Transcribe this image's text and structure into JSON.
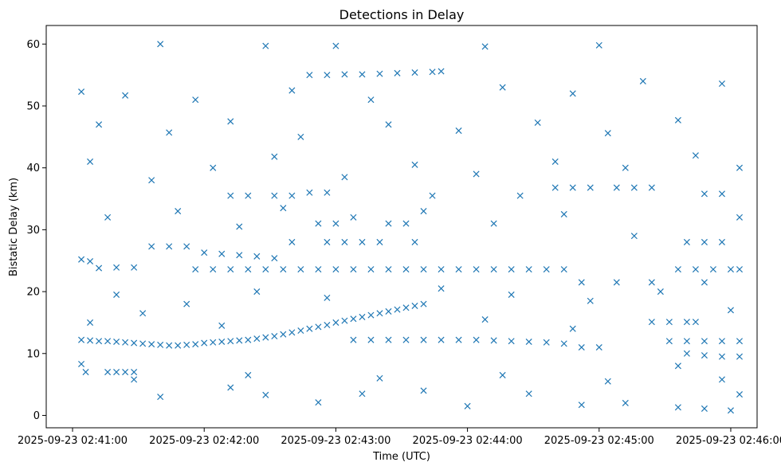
{
  "chart_data": {
    "type": "scatter",
    "title": "Detections in Delay",
    "xlabel": "Time (UTC)",
    "ylabel": "Bistatic Delay (km)",
    "marker": "x",
    "color": "#1f77b4",
    "grid": false,
    "x_ticks": [
      {
        "time": "2025-09-23 02:41:00",
        "label": "2025-09-23 02:41:00"
      },
      {
        "time": "2025-09-23 02:42:00",
        "label": "2025-09-23 02:42:00"
      },
      {
        "time": "2025-09-23 02:43:00",
        "label": "2025-09-23 02:43:00"
      },
      {
        "time": "2025-09-23 02:44:00",
        "label": "2025-09-23 02:44:00"
      },
      {
        "time": "2025-09-23 02:45:00",
        "label": "2025-09-23 02:45:00"
      },
      {
        "time": "2025-09-23 02:46:00",
        "label": "2025-09-23 02:46:00"
      }
    ],
    "y_ticks": [
      0,
      10,
      20,
      30,
      40,
      50,
      60
    ],
    "xlim": [
      "2025-09-23 02:40:48",
      "2025-09-23 02:46:12"
    ],
    "ylim": [
      -2,
      63
    ],
    "series": [
      {
        "values": [
          [
            "2025-09-23 02:41:04",
            12.2
          ],
          [
            "2025-09-23 02:41:08",
            12.1
          ],
          [
            "2025-09-23 02:41:12",
            12.0
          ],
          [
            "2025-09-23 02:41:16",
            12.0
          ],
          [
            "2025-09-23 02:41:20",
            11.9
          ],
          [
            "2025-09-23 02:41:24",
            11.8
          ],
          [
            "2025-09-23 02:41:28",
            11.7
          ],
          [
            "2025-09-23 02:41:32",
            11.6
          ],
          [
            "2025-09-23 02:41:36",
            11.5
          ],
          [
            "2025-09-23 02:41:40",
            11.4
          ],
          [
            "2025-09-23 02:41:44",
            11.3
          ],
          [
            "2025-09-23 02:41:48",
            11.3
          ],
          [
            "2025-09-23 02:41:52",
            11.4
          ],
          [
            "2025-09-23 02:41:56",
            11.5
          ],
          [
            "2025-09-23 02:42:00",
            11.7
          ],
          [
            "2025-09-23 02:42:04",
            11.8
          ],
          [
            "2025-09-23 02:42:08",
            11.9
          ],
          [
            "2025-09-23 02:42:12",
            12.0
          ],
          [
            "2025-09-23 02:42:16",
            12.1
          ],
          [
            "2025-09-23 02:42:20",
            12.2
          ],
          [
            "2025-09-23 02:42:24",
            12.4
          ],
          [
            "2025-09-23 02:42:28",
            12.6
          ],
          [
            "2025-09-23 02:42:32",
            12.8
          ],
          [
            "2025-09-23 02:42:36",
            13.1
          ],
          [
            "2025-09-23 02:42:40",
            13.4
          ],
          [
            "2025-09-23 02:42:44",
            13.7
          ],
          [
            "2025-09-23 02:42:48",
            14.0
          ],
          [
            "2025-09-23 02:42:52",
            14.3
          ],
          [
            "2025-09-23 02:42:56",
            14.6
          ],
          [
            "2025-09-23 02:43:00",
            15.0
          ],
          [
            "2025-09-23 02:43:04",
            15.3
          ],
          [
            "2025-09-23 02:43:08",
            15.6
          ],
          [
            "2025-09-23 02:43:12",
            15.9
          ],
          [
            "2025-09-23 02:43:16",
            16.2
          ],
          [
            "2025-09-23 02:43:20",
            16.5
          ],
          [
            "2025-09-23 02:43:24",
            16.8
          ],
          [
            "2025-09-23 02:43:28",
            17.1
          ],
          [
            "2025-09-23 02:43:32",
            17.4
          ],
          [
            "2025-09-23 02:43:36",
            17.7
          ],
          [
            "2025-09-23 02:43:40",
            18.0
          ],
          [
            "2025-09-23 02:43:08",
            12.2
          ],
          [
            "2025-09-23 02:43:16",
            12.2
          ],
          [
            "2025-09-23 02:43:24",
            12.2
          ],
          [
            "2025-09-23 02:43:32",
            12.2
          ],
          [
            "2025-09-23 02:43:40",
            12.2
          ],
          [
            "2025-09-23 02:43:48",
            12.2
          ],
          [
            "2025-09-23 02:43:56",
            12.2
          ],
          [
            "2025-09-23 02:44:04",
            12.2
          ],
          [
            "2025-09-23 02:44:12",
            12.1
          ],
          [
            "2025-09-23 02:44:20",
            12.0
          ],
          [
            "2025-09-23 02:44:28",
            11.9
          ],
          [
            "2025-09-23 02:44:36",
            11.8
          ],
          [
            "2025-09-23 02:44:44",
            11.6
          ],
          [
            "2025-09-23 02:41:04",
            8.3
          ],
          [
            "2025-09-23 02:41:06",
            7.0
          ],
          [
            "2025-09-23 02:41:16",
            7.0
          ],
          [
            "2025-09-23 02:41:20",
            7.0
          ],
          [
            "2025-09-23 02:41:24",
            7.0
          ],
          [
            "2025-09-23 02:41:28",
            7.0
          ],
          [
            "2025-09-23 02:41:04",
            25.2
          ],
          [
            "2025-09-23 02:41:08",
            24.9
          ],
          [
            "2025-09-23 02:41:12",
            23.8
          ],
          [
            "2025-09-23 02:41:20",
            23.9
          ],
          [
            "2025-09-23 02:41:28",
            23.9
          ],
          [
            "2025-09-23 02:41:36",
            27.3
          ],
          [
            "2025-09-23 02:41:44",
            27.3
          ],
          [
            "2025-09-23 02:41:52",
            27.3
          ],
          [
            "2025-09-23 02:42:00",
            26.3
          ],
          [
            "2025-09-23 02:42:08",
            26.1
          ],
          [
            "2025-09-23 02:42:16",
            25.9
          ],
          [
            "2025-09-23 02:42:24",
            25.7
          ],
          [
            "2025-09-23 02:42:32",
            25.4
          ],
          [
            "2025-09-23 02:41:56",
            23.6
          ],
          [
            "2025-09-23 02:42:04",
            23.6
          ],
          [
            "2025-09-23 02:42:12",
            23.6
          ],
          [
            "2025-09-23 02:42:20",
            23.6
          ],
          [
            "2025-09-23 02:42:28",
            23.6
          ],
          [
            "2025-09-23 02:42:36",
            23.6
          ],
          [
            "2025-09-23 02:42:44",
            23.6
          ],
          [
            "2025-09-23 02:42:52",
            23.6
          ],
          [
            "2025-09-23 02:43:00",
            23.6
          ],
          [
            "2025-09-23 02:43:08",
            23.6
          ],
          [
            "2025-09-23 02:43:16",
            23.6
          ],
          [
            "2025-09-23 02:43:24",
            23.6
          ],
          [
            "2025-09-23 02:43:32",
            23.6
          ],
          [
            "2025-09-23 02:43:40",
            23.6
          ],
          [
            "2025-09-23 02:43:48",
            23.6
          ],
          [
            "2025-09-23 02:43:56",
            23.6
          ],
          [
            "2025-09-23 02:44:04",
            23.6
          ],
          [
            "2025-09-23 02:44:12",
            23.6
          ],
          [
            "2025-09-23 02:44:20",
            23.6
          ],
          [
            "2025-09-23 02:44:28",
            23.6
          ],
          [
            "2025-09-23 02:44:36",
            23.6
          ],
          [
            "2025-09-23 02:44:44",
            23.6
          ],
          [
            "2025-09-23 02:45:36",
            23.6
          ],
          [
            "2025-09-23 02:45:44",
            23.6
          ],
          [
            "2025-09-23 02:45:52",
            23.6
          ],
          [
            "2025-09-23 02:46:00",
            23.6
          ],
          [
            "2025-09-23 02:46:04",
            23.6
          ],
          [
            "2025-09-23 02:42:40",
            28.0
          ],
          [
            "2025-09-23 02:42:56",
            28.0
          ],
          [
            "2025-09-23 02:43:04",
            28.0
          ],
          [
            "2025-09-23 02:43:12",
            28.0
          ],
          [
            "2025-09-23 02:43:20",
            28.0
          ],
          [
            "2025-09-23 02:43:36",
            28.0
          ],
          [
            "2025-09-23 02:45:40",
            28.0
          ],
          [
            "2025-09-23 02:45:48",
            28.0
          ],
          [
            "2025-09-23 02:45:56",
            28.0
          ],
          [
            "2025-09-23 02:42:52",
            31.0
          ],
          [
            "2025-09-23 02:43:00",
            31.0
          ],
          [
            "2025-09-23 02:43:24",
            31.0
          ],
          [
            "2025-09-23 02:43:32",
            31.0
          ],
          [
            "2025-09-23 02:42:12",
            35.5
          ],
          [
            "2025-09-23 02:42:20",
            35.5
          ],
          [
            "2025-09-23 02:42:32",
            35.5
          ],
          [
            "2025-09-23 02:42:40",
            35.5
          ],
          [
            "2025-09-23 02:42:48",
            36.0
          ],
          [
            "2025-09-23 02:42:56",
            36.0
          ],
          [
            "2025-09-23 02:43:44",
            35.5
          ],
          [
            "2025-09-23 02:44:24",
            35.5
          ],
          [
            "2025-09-23 02:44:40",
            36.8
          ],
          [
            "2025-09-23 02:44:48",
            36.8
          ],
          [
            "2025-09-23 02:44:56",
            36.8
          ],
          [
            "2025-09-23 02:45:08",
            36.8
          ],
          [
            "2025-09-23 02:45:16",
            36.8
          ],
          [
            "2025-09-23 02:45:24",
            36.8
          ],
          [
            "2025-09-23 02:45:48",
            35.8
          ],
          [
            "2025-09-23 02:45:56",
            35.8
          ],
          [
            "2025-09-23 02:42:48",
            55.0
          ],
          [
            "2025-09-23 02:42:56",
            55.0
          ],
          [
            "2025-09-23 02:43:04",
            55.1
          ],
          [
            "2025-09-23 02:43:12",
            55.1
          ],
          [
            "2025-09-23 02:43:20",
            55.2
          ],
          [
            "2025-09-23 02:43:28",
            55.3
          ],
          [
            "2025-09-23 02:43:36",
            55.4
          ],
          [
            "2025-09-23 02:43:44",
            55.5
          ],
          [
            "2025-09-23 02:43:48",
            55.6
          ],
          [
            "2025-09-23 02:45:24",
            15.1
          ],
          [
            "2025-09-23 02:45:32",
            15.1
          ],
          [
            "2025-09-23 02:45:40",
            15.1
          ],
          [
            "2025-09-23 02:45:44",
            15.1
          ],
          [
            "2025-09-23 02:45:32",
            12.0
          ],
          [
            "2025-09-23 02:45:40",
            12.0
          ],
          [
            "2025-09-23 02:45:48",
            12.0
          ],
          [
            "2025-09-23 02:45:56",
            12.0
          ],
          [
            "2025-09-23 02:46:04",
            12.0
          ],
          [
            "2025-09-23 02:45:40",
            10.0
          ],
          [
            "2025-09-23 02:45:48",
            9.7
          ],
          [
            "2025-09-23 02:45:56",
            9.5
          ],
          [
            "2025-09-23 02:46:04",
            9.5
          ],
          [
            "2025-09-23 02:44:52",
            11.0
          ],
          [
            "2025-09-23 02:45:00",
            11.0
          ],
          [
            "2025-09-23 02:45:36",
            8.0
          ],
          [
            "2025-09-23 02:44:52",
            21.5
          ],
          [
            "2025-09-23 02:45:08",
            21.5
          ],
          [
            "2025-09-23 02:45:24",
            21.5
          ],
          [
            "2025-09-23 02:45:48",
            21.5
          ],
          [
            "2025-09-23 02:41:40",
            60.0
          ],
          [
            "2025-09-23 02:44:08",
            59.6
          ],
          [
            "2025-09-23 02:45:00",
            59.8
          ],
          [
            "2025-09-23 02:43:00",
            59.7
          ],
          [
            "2025-09-23 02:42:28",
            59.7
          ],
          [
            "2025-09-23 02:41:04",
            52.3
          ],
          [
            "2025-09-23 02:41:24",
            51.7
          ],
          [
            "2025-09-23 02:41:56",
            51.0
          ],
          [
            "2025-09-23 02:42:40",
            52.5
          ],
          [
            "2025-09-23 02:43:16",
            51.0
          ],
          [
            "2025-09-23 02:44:16",
            53.0
          ],
          [
            "2025-09-23 02:44:48",
            52.0
          ],
          [
            "2025-09-23 02:45:20",
            54.0
          ],
          [
            "2025-09-23 02:45:56",
            53.6
          ],
          [
            "2025-09-23 02:41:12",
            47.0
          ],
          [
            "2025-09-23 02:41:44",
            45.7
          ],
          [
            "2025-09-23 02:42:12",
            47.5
          ],
          [
            "2025-09-23 02:42:44",
            45.0
          ],
          [
            "2025-09-23 02:43:24",
            47.0
          ],
          [
            "2025-09-23 02:43:56",
            46.0
          ],
          [
            "2025-09-23 02:44:32",
            47.3
          ],
          [
            "2025-09-23 02:45:04",
            45.6
          ],
          [
            "2025-09-23 02:45:36",
            47.7
          ],
          [
            "2025-09-23 02:46:04",
            40.0
          ],
          [
            "2025-09-23 02:41:08",
            41.0
          ],
          [
            "2025-09-23 02:41:36",
            38.0
          ],
          [
            "2025-09-23 02:42:04",
            40.0
          ],
          [
            "2025-09-23 02:42:32",
            41.8
          ],
          [
            "2025-09-23 02:43:04",
            38.5
          ],
          [
            "2025-09-23 02:43:36",
            40.5
          ],
          [
            "2025-09-23 02:44:04",
            39.0
          ],
          [
            "2025-09-23 02:44:40",
            41.0
          ],
          [
            "2025-09-23 02:45:12",
            40.0
          ],
          [
            "2025-09-23 02:45:44",
            42.0
          ],
          [
            "2025-09-23 02:41:16",
            32.0
          ],
          [
            "2025-09-23 02:41:48",
            33.0
          ],
          [
            "2025-09-23 02:42:16",
            30.5
          ],
          [
            "2025-09-23 02:42:36",
            33.5
          ],
          [
            "2025-09-23 02:43:08",
            32.0
          ],
          [
            "2025-09-23 02:43:40",
            33.0
          ],
          [
            "2025-09-23 02:44:12",
            31.0
          ],
          [
            "2025-09-23 02:44:44",
            32.5
          ],
          [
            "2025-09-23 02:45:16",
            29.0
          ],
          [
            "2025-09-23 02:46:04",
            32.0
          ],
          [
            "2025-09-23 02:41:20",
            19.5
          ],
          [
            "2025-09-23 02:41:52",
            18.0
          ],
          [
            "2025-09-23 02:42:24",
            20.0
          ],
          [
            "2025-09-23 02:42:56",
            19.0
          ],
          [
            "2025-09-23 02:43:48",
            20.5
          ],
          [
            "2025-09-23 02:44:20",
            19.5
          ],
          [
            "2025-09-23 02:44:56",
            18.5
          ],
          [
            "2025-09-23 02:45:28",
            20.0
          ],
          [
            "2025-09-23 02:46:00",
            17.0
          ],
          [
            "2025-09-23 02:41:08",
            15.0
          ],
          [
            "2025-09-23 02:41:32",
            16.5
          ],
          [
            "2025-09-23 02:42:08",
            14.5
          ],
          [
            "2025-09-23 02:44:08",
            15.5
          ],
          [
            "2025-09-23 02:44:48",
            14.0
          ],
          [
            "2025-09-23 02:41:40",
            3.0
          ],
          [
            "2025-09-23 02:42:12",
            4.5
          ],
          [
            "2025-09-23 02:42:28",
            3.3
          ],
          [
            "2025-09-23 02:42:52",
            2.1
          ],
          [
            "2025-09-23 02:43:12",
            3.5
          ],
          [
            "2025-09-23 02:43:40",
            4.0
          ],
          [
            "2025-09-23 02:44:00",
            1.5
          ],
          [
            "2025-09-23 02:44:28",
            3.5
          ],
          [
            "2025-09-23 02:44:52",
            1.7
          ],
          [
            "2025-09-23 02:45:12",
            2.0
          ],
          [
            "2025-09-23 02:45:36",
            1.3
          ],
          [
            "2025-09-23 02:45:48",
            1.1
          ],
          [
            "2025-09-23 02:46:00",
            0.8
          ],
          [
            "2025-09-23 02:46:04",
            3.4
          ],
          [
            "2025-09-23 02:41:28",
            5.8
          ],
          [
            "2025-09-23 02:42:20",
            6.5
          ],
          [
            "2025-09-23 02:43:20",
            6.0
          ],
          [
            "2025-09-23 02:44:16",
            6.5
          ],
          [
            "2025-09-23 02:45:04",
            5.5
          ],
          [
            "2025-09-23 02:45:56",
            5.8
          ]
        ]
      }
    ]
  }
}
